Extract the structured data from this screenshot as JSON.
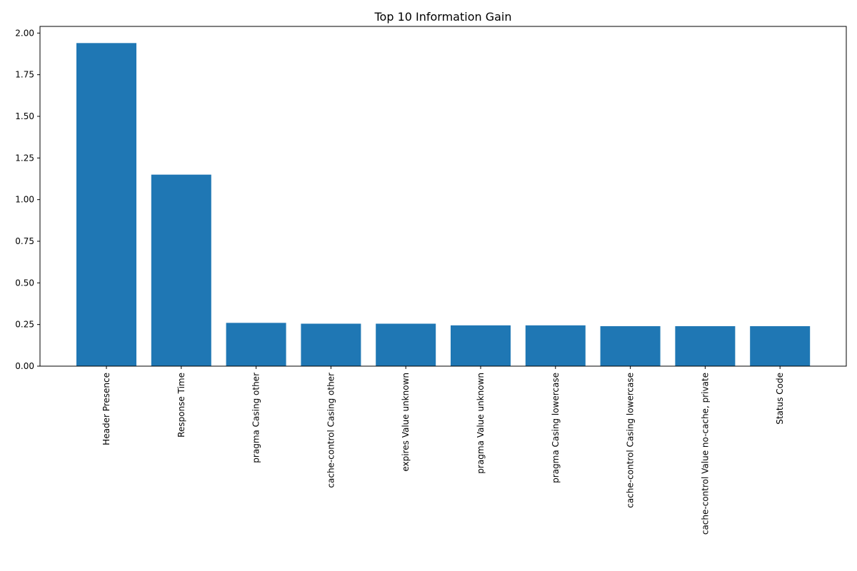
{
  "chart_data": {
    "type": "bar",
    "title": "Top 10 Information Gain",
    "xlabel": "",
    "ylabel": "",
    "categories": [
      "Header Presence",
      "Response Time",
      "pragma Casing other",
      "cache-control Casing other",
      "expires Value unknown",
      "pragma Value unknown",
      "pragma Casing lowercase",
      "cache-control Casing lowercase",
      "cache-control Value no-cache, private",
      "Status Code"
    ],
    "values": [
      1.94,
      1.15,
      0.26,
      0.255,
      0.255,
      0.245,
      0.245,
      0.24,
      0.24,
      0.24
    ],
    "ylim": [
      0,
      2.04
    ],
    "yticks": [
      "0.00",
      "0.25",
      "0.50",
      "0.75",
      "1.00",
      "1.25",
      "1.50",
      "1.75",
      "2.00"
    ],
    "bar_color": "#1f77b4",
    "grid": false,
    "legend": "none"
  }
}
